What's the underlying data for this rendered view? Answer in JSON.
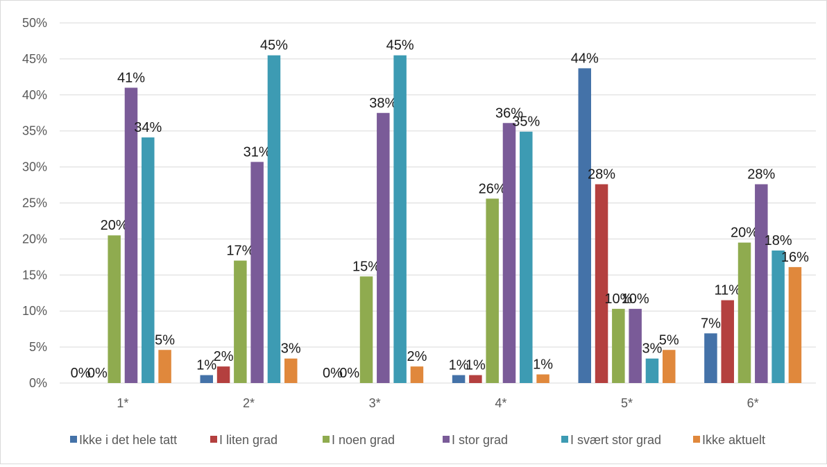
{
  "chart_data": {
    "type": "bar",
    "categories": [
      "1*",
      "2*",
      "3*",
      "4*",
      "5*",
      "6*"
    ],
    "y_ticks": [
      "0%",
      "5%",
      "10%",
      "15%",
      "20%",
      "25%",
      "30%",
      "35%",
      "40%",
      "45%",
      "50%"
    ],
    "ylim": [
      0,
      50
    ],
    "grid": true,
    "legend_position": "bottom",
    "series": [
      {
        "name": "Ikke i det hele tatt",
        "color": "#4472a8",
        "values": [
          0,
          1.1,
          0,
          1.1,
          43.7,
          6.9
        ],
        "labels": [
          "0%",
          "1%",
          "0%",
          "1%",
          "44%",
          "7%"
        ]
      },
      {
        "name": "I liten grad",
        "color": "#b4403f",
        "values": [
          0,
          2.3,
          0,
          1.1,
          27.6,
          11.5
        ],
        "labels": [
          "0%",
          "2%",
          "0%",
          "1%",
          "28%",
          "11%"
        ]
      },
      {
        "name": "I noen grad",
        "color": "#8fab4f",
        "values": [
          20.5,
          17.0,
          14.8,
          25.6,
          10.3,
          19.5
        ],
        "labels": [
          "20%",
          "17%",
          "15%",
          "26%",
          "10%",
          "20%"
        ]
      },
      {
        "name": "I stor grad",
        "color": "#7a5b98",
        "values": [
          41.0,
          30.7,
          37.5,
          36.1,
          10.3,
          27.6
        ],
        "labels": [
          "41%",
          "31%",
          "38%",
          "36%",
          "10%",
          "28%"
        ]
      },
      {
        "name": "I svært stor grad",
        "color": "#3d9bb3",
        "values": [
          34.1,
          45.5,
          45.5,
          34.9,
          3.4,
          18.4
        ],
        "labels": [
          "34%",
          "45%",
          "45%",
          "35%",
          "3%",
          "18%"
        ]
      },
      {
        "name": "Ikke aktuelt",
        "color": "#e0883c",
        "values": [
          4.6,
          3.4,
          2.3,
          1.2,
          4.6,
          16.1
        ],
        "labels": [
          "5%",
          "3%",
          "2%",
          "1%",
          "5%",
          "16%"
        ]
      }
    ]
  }
}
